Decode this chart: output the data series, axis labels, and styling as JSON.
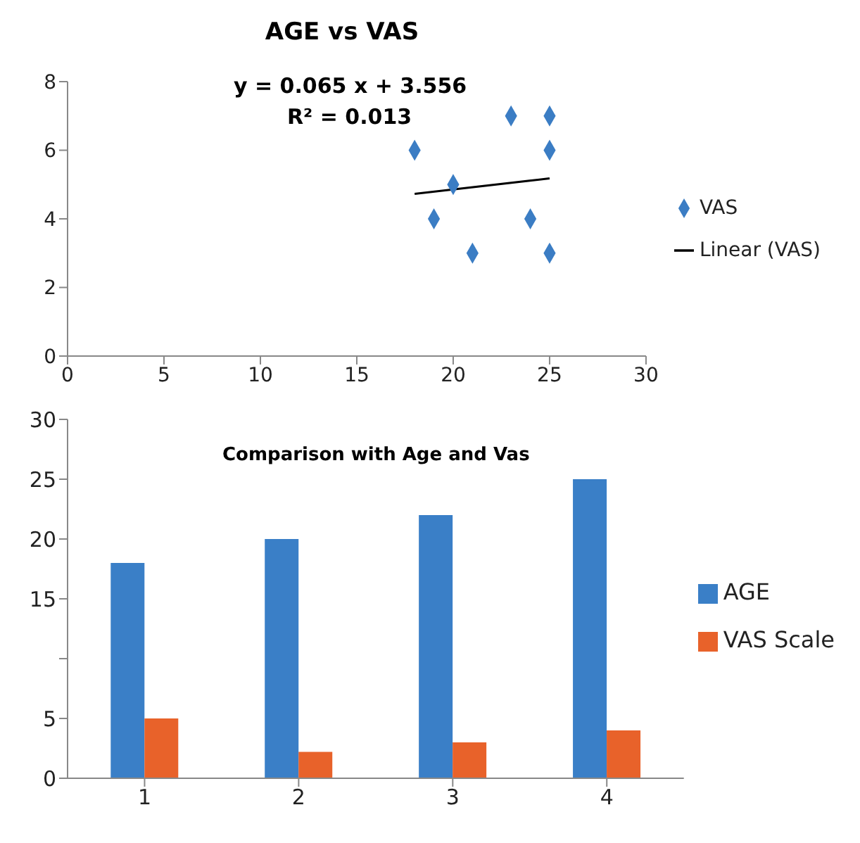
{
  "chart_data": [
    {
      "type": "scatter",
      "title": "AGE vs VAS",
      "annotations": [
        "y = 0.065 x + 3.556",
        "R² = 0.013"
      ],
      "xlim": [
        0,
        30
      ],
      "xticks": [
        0,
        5,
        10,
        15,
        20,
        25,
        30
      ],
      "ylim": [
        0,
        8
      ],
      "yticks": [
        0,
        2,
        4,
        6,
        8
      ],
      "grid": false,
      "legend": "right",
      "series": [
        {
          "name": "VAS",
          "color": "#3b7dc4",
          "marker": "diamond",
          "x": [
            18,
            20,
            19,
            21,
            23,
            25,
            25,
            24,
            25
          ],
          "values": [
            6,
            5,
            4,
            3,
            7,
            7,
            6,
            4,
            3
          ]
        },
        {
          "name": "Linear (VAS)",
          "type": "line",
          "color": "#000000",
          "marker": "none",
          "x": [
            18,
            25
          ],
          "values": [
            4.73,
            5.18
          ]
        }
      ]
    },
    {
      "type": "bar",
      "title": "Comparison with Age and Vas",
      "categories": [
        "1",
        "2",
        "3",
        "4"
      ],
      "ylim": [
        0,
        30
      ],
      "yticks": [
        0,
        5,
        {
          "value": 10,
          "label": null
        },
        15,
        20,
        25,
        30
      ],
      "grid": false,
      "legend": "right",
      "series": [
        {
          "name": "AGE",
          "color": "#3a7fc7",
          "values": [
            18,
            20,
            22,
            25
          ]
        },
        {
          "name": "VAS Scale",
          "color": "#e8622a",
          "values": [
            5,
            2.2,
            3,
            4
          ]
        }
      ]
    }
  ]
}
